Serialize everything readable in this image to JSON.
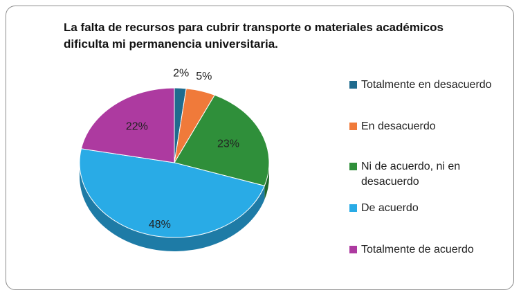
{
  "chart_data": {
    "type": "pie",
    "title": "La falta de recursos para cubrir transporte o materiales académicos dificulta mi permanencia universitaria.",
    "categories": [
      "Totalmente en desacuerdo",
      "En desacuerdo",
      "Ni de acuerdo, ni en desacuerdo",
      "De acuerdo",
      "Totalmente de acuerdo"
    ],
    "values": [
      2,
      5,
      23,
      48,
      22
    ],
    "value_labels": [
      "2%",
      "5%",
      "23%",
      "48%",
      "22%"
    ],
    "colors": [
      "#1f6b8e",
      "#f07a3a",
      "#2f8f3a",
      "#29abe6",
      "#ad3aa0"
    ],
    "legend": "right"
  }
}
